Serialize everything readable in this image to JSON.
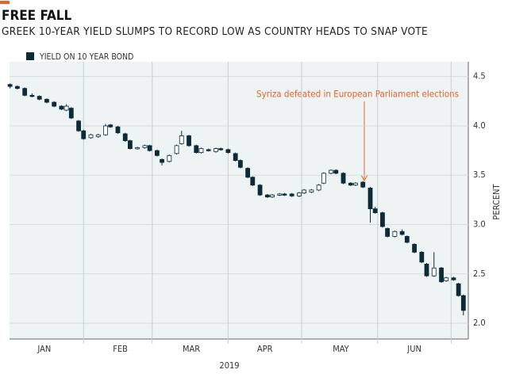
{
  "chart_data": {
    "type": "candlestick",
    "title": "FREE FALL",
    "subtitle": "GREEK 10-YEAR YIELD SLUMPS TO RECORD LOW AS COUNTRY HEADS TO SNAP VOTE",
    "xlabel": "2019",
    "ylabel": "PERCENT",
    "annotation": "Syriza defeated in European Parliament elections",
    "series": [
      {
        "name": "YIELD ON 10 YEAR BOND",
        "color": "#0d2b36",
        "x": [
          2,
          5,
          8,
          11,
          14,
          17,
          20,
          23,
          25,
          27,
          30,
          32,
          35,
          38,
          41,
          43,
          46,
          49,
          51,
          54,
          57,
          59,
          62,
          64,
          67,
          70,
          72,
          75,
          78,
          80,
          83,
          86,
          88,
          91,
          94,
          96,
          99,
          101,
          104,
          107,
          109,
          112,
          114,
          117,
          120,
          122,
          125,
          128,
          130,
          133,
          135,
          138,
          141,
          143,
          146,
          149,
          151,
          154,
          156,
          159,
          162,
          164,
          167,
          170,
          172,
          175,
          178,
          180,
          183,
          185,
          187
        ],
        "open": [
          4.42,
          4.4,
          4.38,
          4.31,
          4.3,
          4.27,
          4.24,
          4.2,
          4.16,
          4.18,
          4.05,
          3.95,
          3.88,
          3.89,
          3.91,
          4.01,
          3.99,
          3.92,
          3.85,
          3.77,
          3.78,
          3.8,
          3.75,
          3.66,
          3.64,
          3.72,
          3.82,
          3.9,
          3.8,
          3.73,
          3.76,
          3.74,
          3.77,
          3.76,
          3.72,
          3.65,
          3.57,
          3.48,
          3.4,
          3.3,
          3.28,
          3.3,
          3.31,
          3.31,
          3.29,
          3.32,
          3.33,
          3.35,
          3.42,
          3.52,
          3.55,
          3.52,
          3.42,
          3.4,
          3.43,
          3.37,
          3.16,
          3.12,
          2.96,
          2.88,
          2.93,
          2.88,
          2.8,
          2.72,
          2.6,
          2.48,
          2.56,
          2.43,
          2.46,
          2.4,
          2.28
        ],
        "high": [
          4.43,
          4.41,
          4.39,
          4.33,
          4.31,
          4.28,
          4.25,
          4.21,
          4.22,
          4.19,
          4.06,
          3.96,
          3.92,
          3.92,
          4.02,
          4.02,
          4.0,
          3.93,
          3.86,
          3.79,
          3.81,
          3.81,
          3.76,
          3.67,
          3.71,
          3.81,
          3.95,
          3.91,
          3.81,
          3.78,
          3.77,
          3.78,
          3.78,
          3.77,
          3.73,
          3.66,
          3.58,
          3.49,
          3.41,
          3.31,
          3.31,
          3.32,
          3.32,
          3.32,
          3.33,
          3.36,
          3.36,
          3.41,
          3.53,
          3.56,
          3.56,
          3.53,
          3.43,
          3.43,
          3.44,
          3.38,
          3.18,
          3.13,
          2.97,
          2.94,
          2.95,
          2.89,
          2.81,
          2.73,
          2.61,
          2.72,
          2.57,
          2.47,
          2.47,
          2.41,
          2.29
        ],
        "low": [
          4.38,
          4.37,
          4.3,
          4.29,
          4.26,
          4.23,
          4.19,
          4.16,
          4.15,
          4.07,
          3.94,
          3.86,
          3.87,
          3.88,
          3.9,
          3.98,
          3.92,
          3.84,
          3.76,
          3.76,
          3.77,
          3.74,
          3.69,
          3.6,
          3.63,
          3.71,
          3.81,
          3.79,
          3.72,
          3.72,
          3.74,
          3.73,
          3.75,
          3.72,
          3.64,
          3.57,
          3.47,
          3.39,
          3.29,
          3.27,
          3.27,
          3.29,
          3.29,
          3.28,
          3.28,
          3.31,
          3.32,
          3.34,
          3.41,
          3.51,
          3.51,
          3.41,
          3.39,
          3.39,
          3.37,
          3.02,
          3.11,
          2.97,
          2.87,
          2.87,
          2.89,
          2.81,
          2.71,
          2.61,
          2.47,
          2.47,
          2.41,
          2.42,
          2.43,
          2.27,
          2.08
        ],
        "close": [
          4.4,
          4.38,
          4.31,
          4.3,
          4.27,
          4.24,
          4.2,
          4.17,
          4.2,
          4.08,
          3.95,
          3.87,
          3.91,
          3.91,
          4.0,
          3.99,
          3.93,
          3.85,
          3.77,
          3.78,
          3.8,
          3.75,
          3.7,
          3.63,
          3.7,
          3.8,
          3.9,
          3.8,
          3.73,
          3.77,
          3.75,
          3.77,
          3.76,
          3.73,
          3.65,
          3.58,
          3.48,
          3.4,
          3.3,
          3.28,
          3.3,
          3.31,
          3.3,
          3.29,
          3.32,
          3.35,
          3.35,
          3.4,
          3.52,
          3.55,
          3.52,
          3.42,
          3.4,
          3.42,
          3.38,
          3.16,
          3.12,
          2.98,
          2.88,
          2.93,
          2.9,
          2.82,
          2.72,
          2.62,
          2.48,
          2.56,
          2.42,
          2.46,
          2.44,
          2.28,
          2.13
        ]
      }
    ],
    "xlim": [
      1.8,
      189
    ],
    "xticks": [
      {
        "value": 16,
        "label": "JAN"
      },
      {
        "value": 47,
        "label": "FEB"
      },
      {
        "value": 76,
        "label": "MAR"
      },
      {
        "value": 106,
        "label": "APR"
      },
      {
        "value": 137,
        "label": "MAY"
      },
      {
        "value": 167,
        "label": "JUN"
      }
    ],
    "xgrid": [
      32,
      60,
      91,
      121,
      152,
      182
    ],
    "ylim": [
      1.84,
      4.65
    ],
    "yticks": [
      {
        "value": 2.0,
        "label": "2.0"
      },
      2.5,
      {
        "value": 3.0,
        "label": "3.0"
      },
      3.5,
      {
        "value": 4.0,
        "label": "4.0"
      },
      4.5
    ],
    "grid": true,
    "legend": "top-left"
  }
}
